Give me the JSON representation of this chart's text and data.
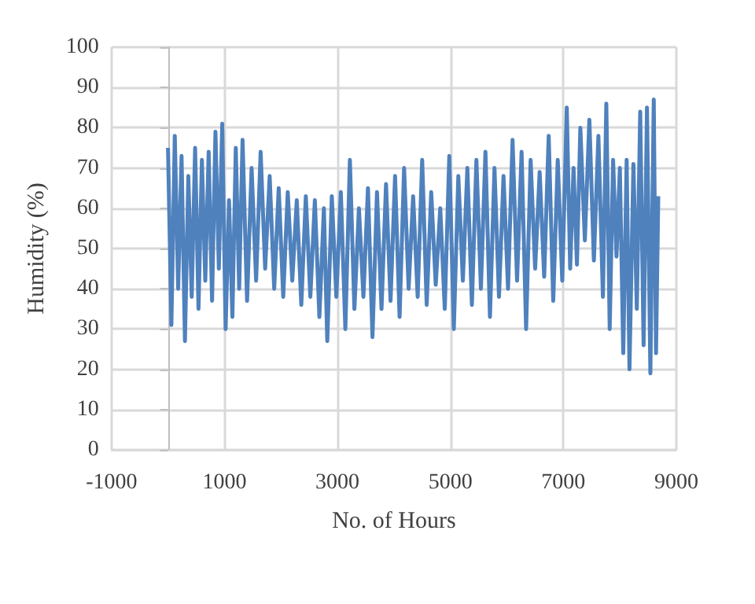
{
  "chart_data": {
    "type": "line",
    "xlabel": "No. of Hours",
    "ylabel": "Humidity (%)",
    "xlim": [
      -1000,
      9000
    ],
    "xticks": [
      -1000,
      1000,
      3000,
      5000,
      7000,
      9000
    ],
    "ylim": [
      0,
      100
    ],
    "yticks": [
      0,
      10,
      20,
      30,
      40,
      50,
      60,
      70,
      80,
      90,
      100
    ],
    "grid": true,
    "marker": "none",
    "line_style": "solid",
    "series": [
      {
        "color": "#4f81bd",
        "x": [
          0,
          60,
          120,
          180,
          240,
          300,
          360,
          420,
          480,
          540,
          600,
          660,
          720,
          780,
          840,
          900,
          960,
          1020,
          1080,
          1140,
          1200,
          1260,
          1320,
          1400,
          1480,
          1560,
          1640,
          1720,
          1800,
          1880,
          1960,
          2040,
          2120,
          2200,
          2280,
          2360,
          2440,
          2520,
          2600,
          2680,
          2760,
          2820,
          2900,
          2980,
          3060,
          3140,
          3220,
          3300,
          3380,
          3460,
          3540,
          3620,
          3700,
          3780,
          3860,
          3940,
          4020,
          4100,
          4180,
          4260,
          4340,
          4420,
          4500,
          4580,
          4660,
          4740,
          4820,
          4900,
          4980,
          5060,
          5140,
          5220,
          5300,
          5380,
          5460,
          5540,
          5620,
          5700,
          5780,
          5860,
          5940,
          6020,
          6100,
          6180,
          6260,
          6340,
          6420,
          6500,
          6580,
          6660,
          6740,
          6820,
          6900,
          6980,
          7060,
          7120,
          7180,
          7240,
          7300,
          7380,
          7460,
          7540,
          7620,
          7700,
          7760,
          7820,
          7880,
          7940,
          8000,
          8060,
          8120,
          8170,
          8240,
          8300,
          8360,
          8420,
          8480,
          8540,
          8600,
          8640,
          8680
        ],
        "values": [
          75,
          31,
          78,
          40,
          73,
          27,
          68,
          38,
          75,
          35,
          72,
          42,
          74,
          37,
          79,
          45,
          81,
          30,
          62,
          33,
          75,
          40,
          77,
          37,
          70,
          42,
          74,
          45,
          68,
          40,
          65,
          38,
          64,
          42,
          62,
          36,
          63,
          38,
          62,
          33,
          60,
          27,
          63,
          38,
          64,
          30,
          72,
          35,
          60,
          38,
          65,
          28,
          64,
          35,
          66,
          37,
          68,
          33,
          70,
          40,
          63,
          38,
          72,
          36,
          64,
          41,
          60,
          35,
          73,
          30,
          68,
          42,
          70,
          36,
          72,
          40,
          74,
          33,
          70,
          38,
          68,
          40,
          77,
          42,
          74,
          30,
          72,
          45,
          69,
          43,
          78,
          37,
          72,
          42,
          85,
          45,
          70,
          46,
          80,
          52,
          82,
          47,
          78,
          38,
          86,
          30,
          72,
          48,
          70,
          24,
          72,
          20,
          71,
          35,
          84,
          26,
          85,
          19,
          87,
          24,
          63
        ]
      }
    ]
  }
}
